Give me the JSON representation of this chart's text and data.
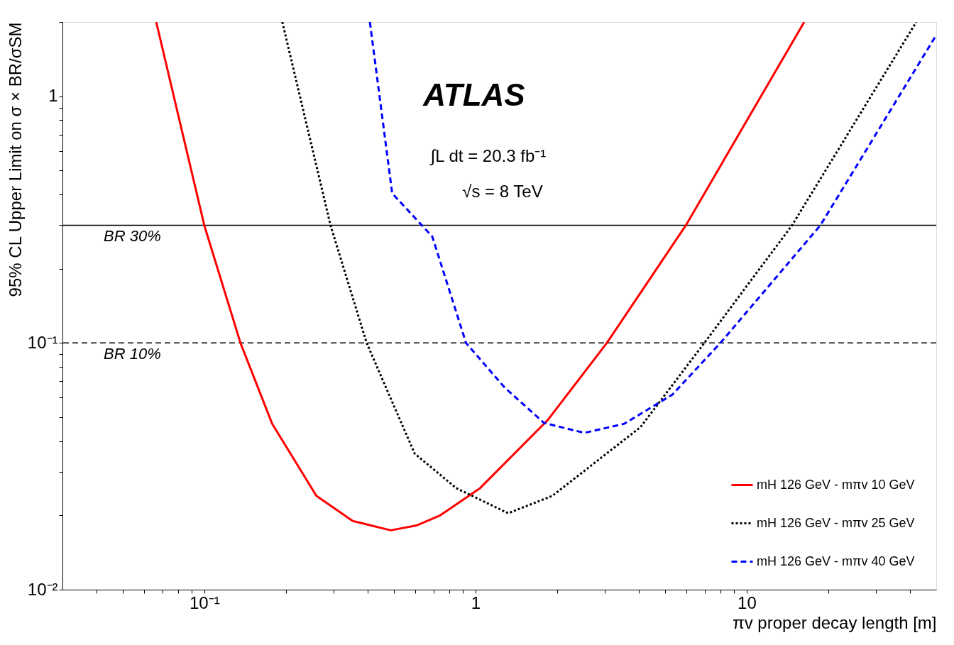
{
  "chart_data": {
    "type": "line",
    "xlabel": "πv proper decay length [m]",
    "ylabel": "95% CL Upper Limit on σ × BR/σSM",
    "log": "xy",
    "xlim": [
      0.03,
      50
    ],
    "ylim": [
      0.01,
      2
    ],
    "xticks": [
      {
        "value": 0.04,
        "label": null
      },
      {
        "value": 0.05,
        "label": null
      },
      {
        "value": 0.06,
        "label": null
      },
      {
        "value": 0.07,
        "label": null
      },
      {
        "value": 0.08,
        "label": null
      },
      {
        "value": 0.09,
        "label": null
      },
      {
        "value": 0.1,
        "label": "10⁻¹"
      },
      {
        "value": 0.2,
        "label": null
      },
      {
        "value": 0.3,
        "label": null
      },
      {
        "value": 0.4,
        "label": null
      },
      {
        "value": 0.5,
        "label": null
      },
      {
        "value": 0.6,
        "label": null
      },
      {
        "value": 0.7,
        "label": null
      },
      {
        "value": 0.8,
        "label": null
      },
      {
        "value": 0.9,
        "label": null
      },
      1,
      {
        "value": 2,
        "label": null
      },
      {
        "value": 3,
        "label": null
      },
      {
        "value": 4,
        "label": null
      },
      {
        "value": 5,
        "label": null
      },
      {
        "value": 6,
        "label": null
      },
      {
        "value": 7,
        "label": null
      },
      {
        "value": 8,
        "label": null
      },
      {
        "value": 9,
        "label": null
      },
      10,
      {
        "value": 20,
        "label": null
      },
      {
        "value": 30,
        "label": null
      },
      {
        "value": 40,
        "label": null
      }
    ],
    "yticks": [
      {
        "value": 0.01,
        "label": "10⁻²"
      },
      {
        "value": 0.02,
        "label": null
      },
      {
        "value": 0.03,
        "label": null
      },
      {
        "value": 0.04,
        "label": null
      },
      {
        "value": 0.05,
        "label": null
      },
      {
        "value": 0.06,
        "label": null
      },
      {
        "value": 0.07,
        "label": null
      },
      {
        "value": 0.08,
        "label": null
      },
      {
        "value": 0.09,
        "label": null
      },
      {
        "value": 0.1,
        "label": "10⁻¹"
      },
      {
        "value": 0.2,
        "label": null
      },
      {
        "value": 0.3,
        "label": null
      },
      {
        "value": 0.4,
        "label": null
      },
      {
        "value": 0.5,
        "label": null
      },
      {
        "value": 0.6,
        "label": null
      },
      {
        "value": 0.7,
        "label": null
      },
      {
        "value": 0.8,
        "label": null
      },
      {
        "value": 0.9,
        "label": null
      },
      1,
      {
        "value": 2,
        "label": null
      }
    ],
    "grid": false,
    "legend": "bottom right",
    "series": [
      {
        "name": "mH 126 GeV - mπv 10 GeV",
        "color": "#ff0000",
        "line_style": "solid",
        "x": [
          0.0665,
          0.1,
          0.136,
          0.178,
          0.259,
          0.352,
          0.487,
          0.606,
          0.741,
          1.04,
          1.85,
          3.05,
          5.97,
          16.3
        ],
        "values": [
          2,
          0.3,
          0.1,
          0.047,
          0.024,
          0.019,
          0.0174,
          0.0182,
          0.02,
          0.0258,
          0.0488,
          0.1,
          0.3,
          2
        ]
      },
      {
        "name": "mH 126 GeV - mπv 25 GeV",
        "color": "#000000",
        "line_style": "dotted",
        "x": [
          0.194,
          0.292,
          0.397,
          0.493,
          0.597,
          0.849,
          1.32,
          1.92,
          4.06,
          6.98,
          14.7,
          42.2
        ],
        "values": [
          2,
          0.3,
          0.1,
          0.0577,
          0.0356,
          0.0258,
          0.0204,
          0.024,
          0.0456,
          0.1,
          0.3,
          2
        ]
      },
      {
        "name": "mH 126 GeV - mπv 40 GeV",
        "color": "#0000ff",
        "line_style": "dashed",
        "x": [
          0.408,
          0.493,
          0.693,
          0.923,
          1.28,
          1.79,
          2.52,
          3.53,
          5.32,
          8.0,
          18.7,
          50
        ],
        "values": [
          2,
          0.404,
          0.27,
          0.1,
          0.066,
          0.0474,
          0.0432,
          0.047,
          0.0617,
          0.1,
          0.3,
          1.77
        ]
      }
    ],
    "ref_lines": [
      {
        "axis": "y",
        "value": 0.3,
        "label": "BR 30%",
        "color": "#000000",
        "line_style": "solid"
      },
      {
        "axis": "y",
        "value": 0.1,
        "label": "BR 10%",
        "color": "#000000",
        "line_style": "dashed"
      }
    ],
    "annotations": [
      "ATLAS",
      "∫L dt = 20.3 fb⁻¹",
      "√s = 8 TeV"
    ]
  }
}
